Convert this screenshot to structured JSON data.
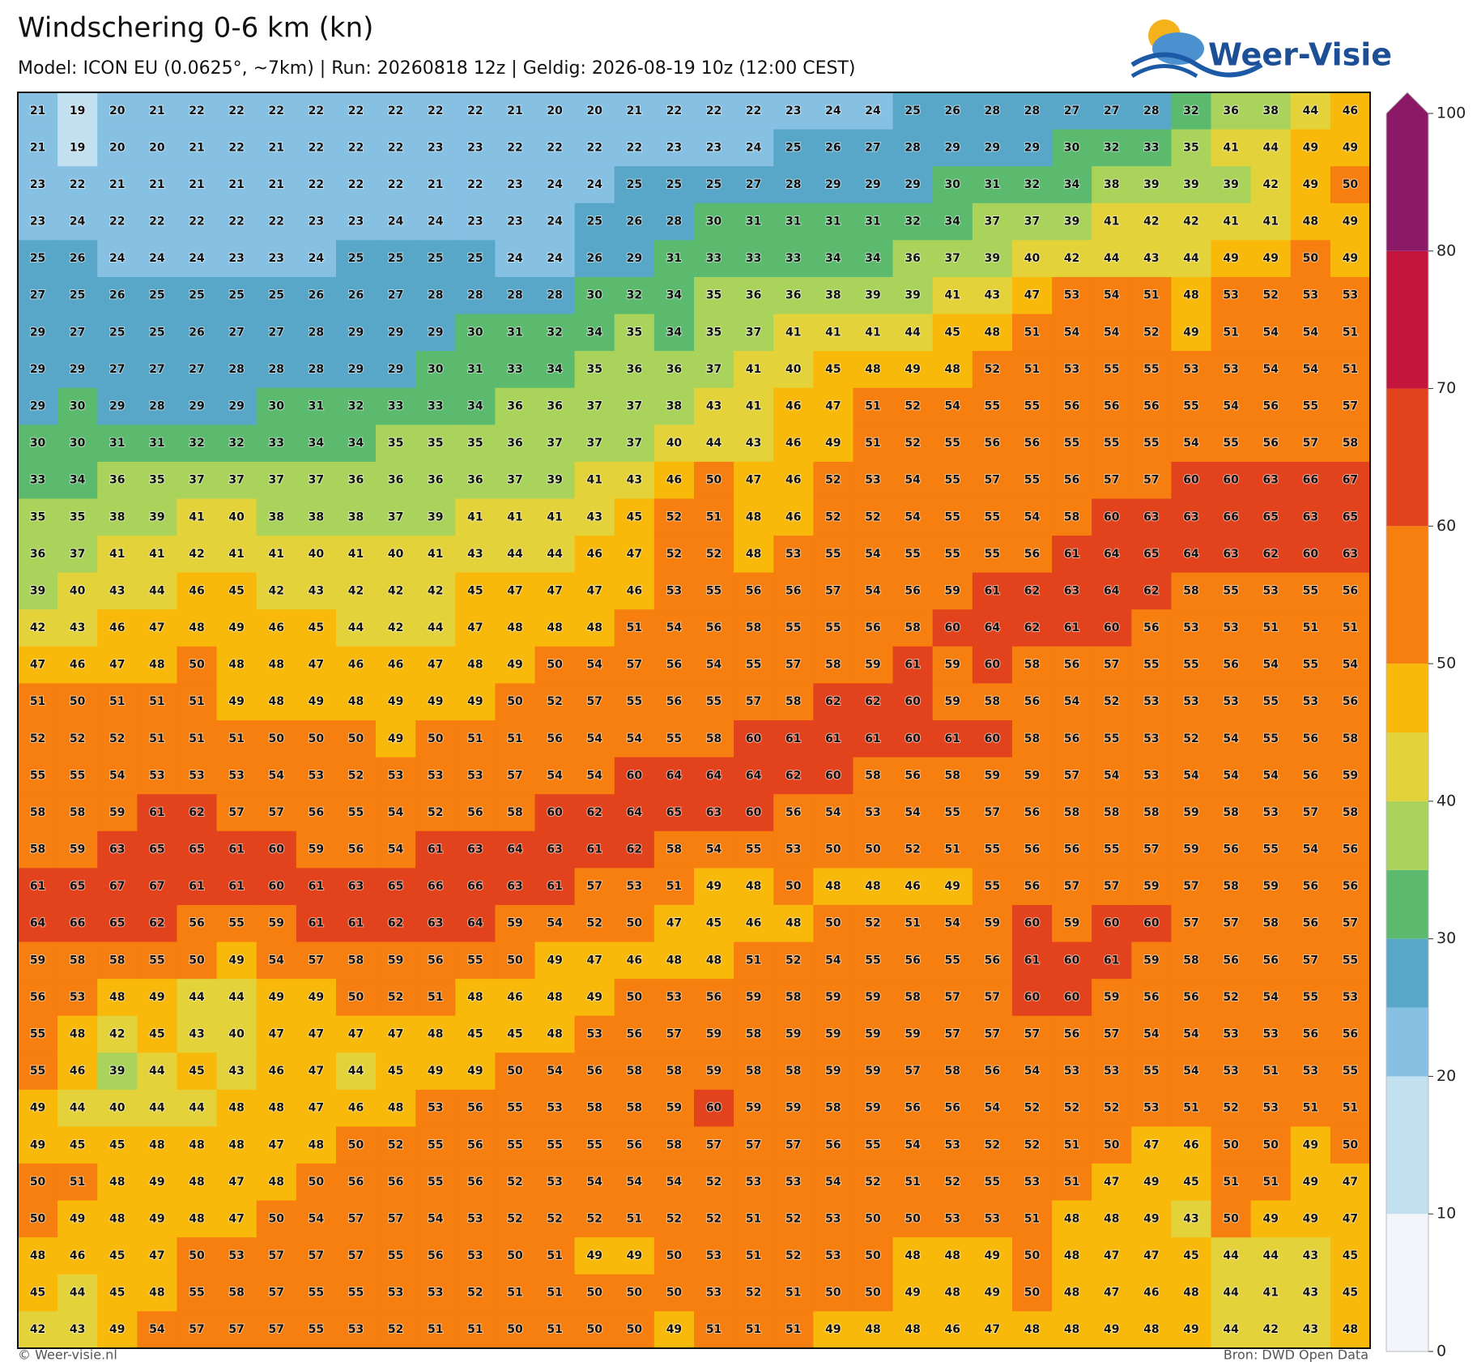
{
  "chart_data": {
    "type": "heatmap",
    "title": "Windschering 0-6 km (kn)",
    "subtitle": "Model: ICON EU (0.0625°, ~7km)  |  Run: 20260818 12z  |  Geldig: 2026-08-19 10z (12:00 CEST)",
    "values": [
      [
        21,
        19,
        20,
        21,
        22,
        22,
        22,
        22,
        22,
        22,
        22,
        22,
        21,
        20,
        20,
        21,
        22,
        22,
        22,
        23,
        24,
        24,
        25,
        26,
        28,
        28,
        27,
        27,
        28,
        32,
        36,
        38,
        44,
        46
      ],
      [
        21,
        19,
        20,
        20,
        21,
        22,
        21,
        22,
        22,
        22,
        23,
        23,
        22,
        22,
        22,
        22,
        23,
        23,
        24,
        25,
        26,
        27,
        28,
        29,
        29,
        29,
        30,
        32,
        33,
        35,
        41,
        44,
        49,
        49
      ],
      [
        23,
        22,
        21,
        21,
        21,
        21,
        21,
        22,
        22,
        22,
        21,
        22,
        23,
        24,
        24,
        25,
        25,
        25,
        27,
        28,
        29,
        29,
        29,
        30,
        31,
        32,
        34,
        38,
        39,
        39,
        39,
        42,
        49,
        50
      ],
      [
        23,
        24,
        22,
        22,
        22,
        22,
        22,
        23,
        23,
        24,
        24,
        23,
        23,
        24,
        25,
        26,
        28,
        30,
        31,
        31,
        31,
        31,
        32,
        34,
        37,
        37,
        39,
        41,
        42,
        42,
        41,
        41,
        48,
        49
      ],
      [
        25,
        26,
        24,
        24,
        24,
        23,
        23,
        24,
        25,
        25,
        25,
        25,
        24,
        24,
        26,
        29,
        31,
        33,
        33,
        33,
        34,
        34,
        36,
        37,
        39,
        40,
        42,
        44,
        43,
        44,
        49,
        49,
        50,
        49
      ],
      [
        27,
        25,
        26,
        25,
        25,
        25,
        25,
        26,
        26,
        27,
        28,
        28,
        28,
        28,
        30,
        32,
        34,
        35,
        36,
        36,
        38,
        39,
        39,
        41,
        43,
        47,
        53,
        54,
        51,
        48,
        53,
        52,
        53,
        53
      ],
      [
        29,
        27,
        25,
        25,
        26,
        27,
        27,
        28,
        29,
        29,
        29,
        30,
        31,
        32,
        34,
        35,
        34,
        35,
        37,
        41,
        41,
        41,
        44,
        45,
        48,
        51,
        54,
        54,
        52,
        49,
        51,
        54,
        54,
        51
      ],
      [
        29,
        29,
        27,
        27,
        27,
        28,
        28,
        28,
        29,
        29,
        30,
        31,
        33,
        34,
        35,
        36,
        36,
        37,
        41,
        40,
        45,
        48,
        49,
        48,
        52,
        51,
        53,
        55,
        55,
        53,
        53,
        54,
        54,
        51
      ],
      [
        29,
        30,
        29,
        28,
        29,
        29,
        30,
        31,
        32,
        33,
        33,
        34,
        36,
        36,
        37,
        37,
        38,
        43,
        41,
        46,
        47,
        51,
        52,
        54,
        55,
        55,
        56,
        56,
        56,
        55,
        54,
        56,
        55,
        57
      ],
      [
        30,
        30,
        31,
        31,
        32,
        32,
        33,
        34,
        34,
        35,
        35,
        35,
        36,
        37,
        37,
        37,
        40,
        44,
        43,
        46,
        49,
        51,
        52,
        55,
        56,
        56,
        55,
        55,
        55,
        54,
        55,
        56,
        57,
        58
      ],
      [
        33,
        34,
        36,
        35,
        37,
        37,
        37,
        37,
        36,
        36,
        36,
        36,
        37,
        39,
        41,
        43,
        46,
        50,
        47,
        46,
        52,
        53,
        54,
        55,
        57,
        55,
        56,
        57,
        57,
        60,
        60,
        63,
        66,
        67
      ],
      [
        35,
        35,
        38,
        39,
        41,
        40,
        38,
        38,
        38,
        37,
        39,
        41,
        41,
        41,
        43,
        45,
        52,
        51,
        48,
        46,
        52,
        52,
        54,
        55,
        55,
        54,
        58,
        60,
        63,
        63,
        66,
        65,
        63,
        65
      ],
      [
        36,
        37,
        41,
        41,
        42,
        41,
        41,
        40,
        41,
        40,
        41,
        43,
        44,
        44,
        46,
        47,
        52,
        52,
        48,
        53,
        55,
        54,
        55,
        55,
        55,
        56,
        61,
        64,
        65,
        64,
        63,
        62,
        60,
        63
      ],
      [
        39,
        40,
        43,
        44,
        46,
        45,
        42,
        43,
        42,
        42,
        42,
        45,
        47,
        47,
        47,
        46,
        53,
        55,
        56,
        56,
        57,
        54,
        56,
        59,
        61,
        62,
        63,
        64,
        62,
        58,
        55,
        53,
        55,
        56
      ],
      [
        42,
        43,
        46,
        47,
        48,
        49,
        46,
        45,
        44,
        42,
        44,
        47,
        48,
        48,
        48,
        51,
        54,
        56,
        58,
        55,
        55,
        56,
        58,
        60,
        64,
        62,
        61,
        60,
        56,
        53,
        53,
        51,
        51,
        51
      ],
      [
        47,
        46,
        47,
        48,
        50,
        48,
        48,
        47,
        46,
        46,
        47,
        48,
        49,
        50,
        54,
        57,
        56,
        54,
        55,
        57,
        58,
        59,
        61,
        59,
        60,
        58,
        56,
        57,
        55,
        55,
        56,
        54,
        55,
        54
      ],
      [
        51,
        50,
        51,
        51,
        51,
        49,
        48,
        49,
        48,
        49,
        49,
        49,
        50,
        52,
        57,
        55,
        56,
        55,
        57,
        58,
        62,
        62,
        60,
        59,
        58,
        56,
        54,
        52,
        53,
        53,
        53,
        55,
        53,
        56
      ],
      [
        52,
        52,
        52,
        51,
        51,
        51,
        50,
        50,
        50,
        49,
        50,
        51,
        51,
        56,
        54,
        54,
        55,
        58,
        60,
        61,
        61,
        61,
        60,
        61,
        60,
        58,
        56,
        55,
        53,
        52,
        54,
        55,
        56,
        58
      ],
      [
        55,
        55,
        54,
        53,
        53,
        53,
        54,
        53,
        52,
        53,
        53,
        53,
        57,
        54,
        54,
        60,
        64,
        64,
        64,
        62,
        60,
        58,
        56,
        58,
        59,
        59,
        57,
        54,
        53,
        54,
        54,
        54,
        56,
        59
      ],
      [
        58,
        58,
        59,
        61,
        62,
        57,
        57,
        56,
        55,
        54,
        52,
        56,
        58,
        60,
        62,
        64,
        65,
        63,
        60,
        56,
        54,
        53,
        54,
        55,
        57,
        56,
        58,
        58,
        58,
        59,
        58,
        53,
        57,
        58
      ],
      [
        58,
        59,
        63,
        65,
        65,
        61,
        60,
        59,
        56,
        54,
        61,
        63,
        64,
        63,
        61,
        62,
        58,
        54,
        55,
        53,
        50,
        50,
        52,
        51,
        55,
        56,
        56,
        55,
        57,
        59,
        56,
        55,
        54,
        56
      ],
      [
        61,
        65,
        67,
        67,
        61,
        61,
        60,
        61,
        63,
        65,
        66,
        66,
        63,
        61,
        57,
        53,
        51,
        49,
        48,
        50,
        48,
        48,
        46,
        49,
        55,
        56,
        57,
        57,
        59,
        57,
        58,
        59,
        56,
        56
      ],
      [
        64,
        66,
        65,
        62,
        56,
        55,
        59,
        61,
        61,
        62,
        63,
        64,
        59,
        54,
        52,
        50,
        47,
        45,
        46,
        48,
        50,
        52,
        51,
        54,
        59,
        60,
        59,
        60,
        60,
        57,
        57,
        58,
        56,
        57
      ],
      [
        59,
        58,
        58,
        55,
        50,
        49,
        54,
        57,
        58,
        59,
        56,
        55,
        50,
        49,
        47,
        46,
        48,
        48,
        51,
        52,
        54,
        55,
        56,
        55,
        56,
        61,
        60,
        61,
        59,
        58,
        56,
        56,
        57,
        55
      ],
      [
        56,
        53,
        48,
        49,
        44,
        44,
        49,
        49,
        50,
        52,
        51,
        48,
        46,
        48,
        49,
        50,
        53,
        56,
        59,
        58,
        59,
        59,
        58,
        57,
        57,
        60,
        60,
        59,
        56,
        56,
        52,
        54,
        55,
        53
      ],
      [
        55,
        48,
        42,
        45,
        43,
        40,
        47,
        47,
        47,
        47,
        48,
        45,
        45,
        48,
        53,
        56,
        57,
        59,
        58,
        59,
        59,
        59,
        59,
        57,
        57,
        57,
        56,
        57,
        54,
        54,
        53,
        53,
        56,
        56
      ],
      [
        55,
        46,
        39,
        44,
        45,
        43,
        46,
        47,
        44,
        45,
        49,
        49,
        50,
        54,
        56,
        58,
        58,
        59,
        58,
        58,
        59,
        59,
        57,
        58,
        56,
        54,
        53,
        53,
        55,
        54,
        53,
        51,
        53,
        55
      ],
      [
        49,
        44,
        40,
        44,
        44,
        48,
        48,
        47,
        46,
        48,
        53,
        56,
        55,
        53,
        58,
        58,
        59,
        60,
        59,
        59,
        58,
        59,
        56,
        56,
        54,
        52,
        52,
        52,
        53,
        51,
        52,
        53,
        51,
        51
      ],
      [
        49,
        45,
        45,
        48,
        48,
        48,
        47,
        48,
        50,
        52,
        55,
        56,
        55,
        55,
        55,
        56,
        58,
        57,
        57,
        57,
        56,
        55,
        54,
        53,
        52,
        52,
        51,
        50,
        47,
        46,
        50,
        50,
        49,
        50
      ],
      [
        50,
        51,
        48,
        49,
        48,
        47,
        48,
        50,
        56,
        56,
        55,
        56,
        52,
        53,
        54,
        54,
        54,
        52,
        53,
        53,
        54,
        52,
        51,
        52,
        55,
        53,
        51,
        47,
        49,
        45,
        51,
        51,
        49,
        47
      ],
      [
        50,
        49,
        48,
        49,
        48,
        47,
        50,
        54,
        57,
        57,
        54,
        53,
        52,
        52,
        52,
        51,
        52,
        52,
        51,
        52,
        53,
        50,
        50,
        53,
        53,
        51,
        48,
        48,
        49,
        43,
        50,
        49,
        49,
        47
      ],
      [
        48,
        46,
        45,
        47,
        50,
        53,
        57,
        57,
        57,
        55,
        56,
        53,
        50,
        51,
        49,
        49,
        50,
        53,
        51,
        52,
        53,
        50,
        48,
        48,
        49,
        50,
        48,
        47,
        47,
        45,
        44,
        44,
        43,
        45
      ],
      [
        45,
        44,
        45,
        48,
        55,
        58,
        57,
        55,
        55,
        53,
        53,
        52,
        51,
        51,
        50,
        50,
        50,
        53,
        52,
        51,
        50,
        50,
        49,
        48,
        49,
        50,
        48,
        47,
        46,
        48,
        44,
        41,
        43,
        45
      ],
      [
        42,
        43,
        49,
        54,
        57,
        57,
        57,
        55,
        53,
        52,
        51,
        51,
        50,
        51,
        50,
        50,
        49,
        51,
        51,
        51,
        49,
        48,
        48,
        46,
        47,
        48,
        48,
        49,
        48,
        49,
        44,
        42,
        43,
        48
      ]
    ],
    "colorbar": {
      "bounds": [
        0,
        10,
        20,
        25,
        30,
        35,
        40,
        45,
        50,
        60,
        70,
        80,
        100
      ],
      "colors": [
        "#f2f6fa",
        "#c3e0f0",
        "#86c1e4",
        "#58a7c9",
        "#5cba6e",
        "#aad35b",
        "#e4d23a",
        "#f9b90a",
        "#f67f10",
        "#e2431d",
        "#c4163c",
        "#8a1a68"
      ],
      "ticks": [
        0,
        10,
        20,
        30,
        40,
        50,
        60,
        70,
        80,
        100
      ]
    }
  },
  "logo_text": "Weer-Visie",
  "footer": {
    "credit": "© Weer-visie.nl",
    "source": "Bron: DWD Open Data"
  }
}
